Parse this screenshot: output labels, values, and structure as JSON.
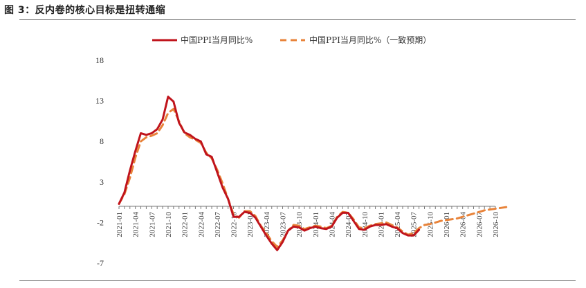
{
  "figure": {
    "title": "图 3：反内卷的核心目标是扭转通缩"
  },
  "chart_data": {
    "type": "line",
    "title": "",
    "xlabel": "",
    "ylabel": "",
    "ylim": [
      -7,
      18
    ],
    "yticks": [
      18,
      13,
      8,
      3,
      -2,
      -7
    ],
    "x_tick_labels": [
      "2021-01",
      "2021-04",
      "2021-07",
      "2021-10",
      "2022-01",
      "2022-04",
      "2022-07",
      "2022-10",
      "2023-01",
      "2023-04",
      "2023-07",
      "2023-10",
      "2024-01",
      "2024-04",
      "2024-07",
      "2024-10",
      "2025-01",
      "2025-04",
      "2025-07",
      "2025-10",
      "2026-01",
      "2026-04",
      "2026-07",
      "2026-10"
    ],
    "legend_position": "top",
    "grid": false,
    "series": [
      {
        "name": "中国PPI当月同比%",
        "color": "#c0141c",
        "style": "solid",
        "x": [
          "2021-01",
          "2021-02",
          "2021-03",
          "2021-04",
          "2021-05",
          "2021-06",
          "2021-07",
          "2021-08",
          "2021-09",
          "2021-10",
          "2021-11",
          "2021-12",
          "2022-01",
          "2022-02",
          "2022-03",
          "2022-04",
          "2022-05",
          "2022-06",
          "2022-07",
          "2022-08",
          "2022-09",
          "2022-10",
          "2022-11",
          "2022-12",
          "2023-01",
          "2023-02",
          "2023-03",
          "2023-04",
          "2023-05",
          "2023-06",
          "2023-07",
          "2023-08",
          "2023-09",
          "2023-10",
          "2023-11",
          "2023-12",
          "2024-01",
          "2024-02",
          "2024-03",
          "2024-04",
          "2024-05",
          "2024-06",
          "2024-07",
          "2024-08",
          "2024-09",
          "2024-10",
          "2024-11",
          "2024-12",
          "2025-01",
          "2025-02",
          "2025-03",
          "2025-04",
          "2025-05",
          "2025-06",
          "2025-07",
          "2025-08"
        ],
        "values": [
          0.3,
          1.7,
          4.4,
          6.8,
          9.0,
          8.8,
          9.0,
          9.5,
          10.7,
          13.5,
          12.9,
          10.3,
          9.1,
          8.8,
          8.3,
          8.0,
          6.4,
          6.1,
          4.2,
          2.3,
          0.9,
          -1.3,
          -1.3,
          -0.7,
          -0.8,
          -1.4,
          -2.5,
          -3.6,
          -4.6,
          -5.4,
          -4.4,
          -3.0,
          -2.5,
          -2.6,
          -3.0,
          -2.7,
          -2.5,
          -2.7,
          -2.8,
          -2.5,
          -1.4,
          -0.8,
          -0.8,
          -1.8,
          -2.8,
          -2.9,
          -2.5,
          -2.3,
          -2.3,
          -2.2,
          -2.5,
          -2.7,
          -3.3,
          -3.6,
          -3.6,
          -2.9
        ]
      },
      {
        "name": "中国PPI当月同比%（一致预期）",
        "color": "#e8833a",
        "style": "dashed",
        "x": [
          "2021-01",
          "2021-02",
          "2021-03",
          "2021-04",
          "2021-05",
          "2021-06",
          "2021-07",
          "2021-08",
          "2021-09",
          "2021-10",
          "2021-11",
          "2021-12",
          "2022-01",
          "2022-02",
          "2022-03",
          "2022-04",
          "2022-05",
          "2022-06",
          "2022-07",
          "2022-08",
          "2022-09",
          "2022-10",
          "2022-11",
          "2022-12",
          "2023-01",
          "2023-02",
          "2023-03",
          "2023-04",
          "2023-05",
          "2023-06",
          "2023-07",
          "2023-08",
          "2023-09",
          "2023-10",
          "2023-11",
          "2023-12",
          "2024-01",
          "2024-02",
          "2024-03",
          "2024-04",
          "2024-05",
          "2024-06",
          "2024-07",
          "2024-08",
          "2024-09",
          "2024-10",
          "2024-11",
          "2024-12",
          "2025-01",
          "2025-02",
          "2025-03",
          "2025-04",
          "2025-05",
          "2025-06",
          "2025-07",
          "2025-08",
          "2025-09",
          "2025-10",
          "2025-11",
          "2025-12",
          "2026-01",
          "2026-02",
          "2026-03",
          "2026-04",
          "2026-05",
          "2026-06",
          "2026-07",
          "2026-08",
          "2026-09",
          "2026-10",
          "2026-11",
          "2026-12"
        ],
        "values": [
          0.3,
          1.5,
          3.5,
          6.0,
          8.0,
          8.5,
          8.7,
          9.0,
          10.0,
          11.5,
          12.0,
          10.5,
          9.0,
          8.5,
          8.2,
          7.8,
          6.6,
          5.9,
          4.5,
          2.8,
          0.9,
          -1.0,
          -1.4,
          -0.6,
          -0.6,
          -1.2,
          -2.4,
          -3.3,
          -4.3,
          -5.0,
          -4.2,
          -3.0,
          -2.3,
          -2.4,
          -2.8,
          -2.6,
          -2.4,
          -2.5,
          -2.7,
          -2.4,
          -1.3,
          -0.7,
          -0.8,
          -1.6,
          -2.6,
          -2.7,
          -2.4,
          -2.2,
          -2.1,
          -2.0,
          -2.3,
          -2.6,
          -3.1,
          -3.5,
          -3.3,
          -2.7,
          -2.3,
          -2.2,
          -2.0,
          -1.8,
          -1.7,
          -1.6,
          -1.5,
          -1.3,
          -1.1,
          -0.9,
          -0.7,
          -0.5,
          -0.4,
          -0.3,
          -0.2,
          -0.1
        ]
      }
    ]
  }
}
